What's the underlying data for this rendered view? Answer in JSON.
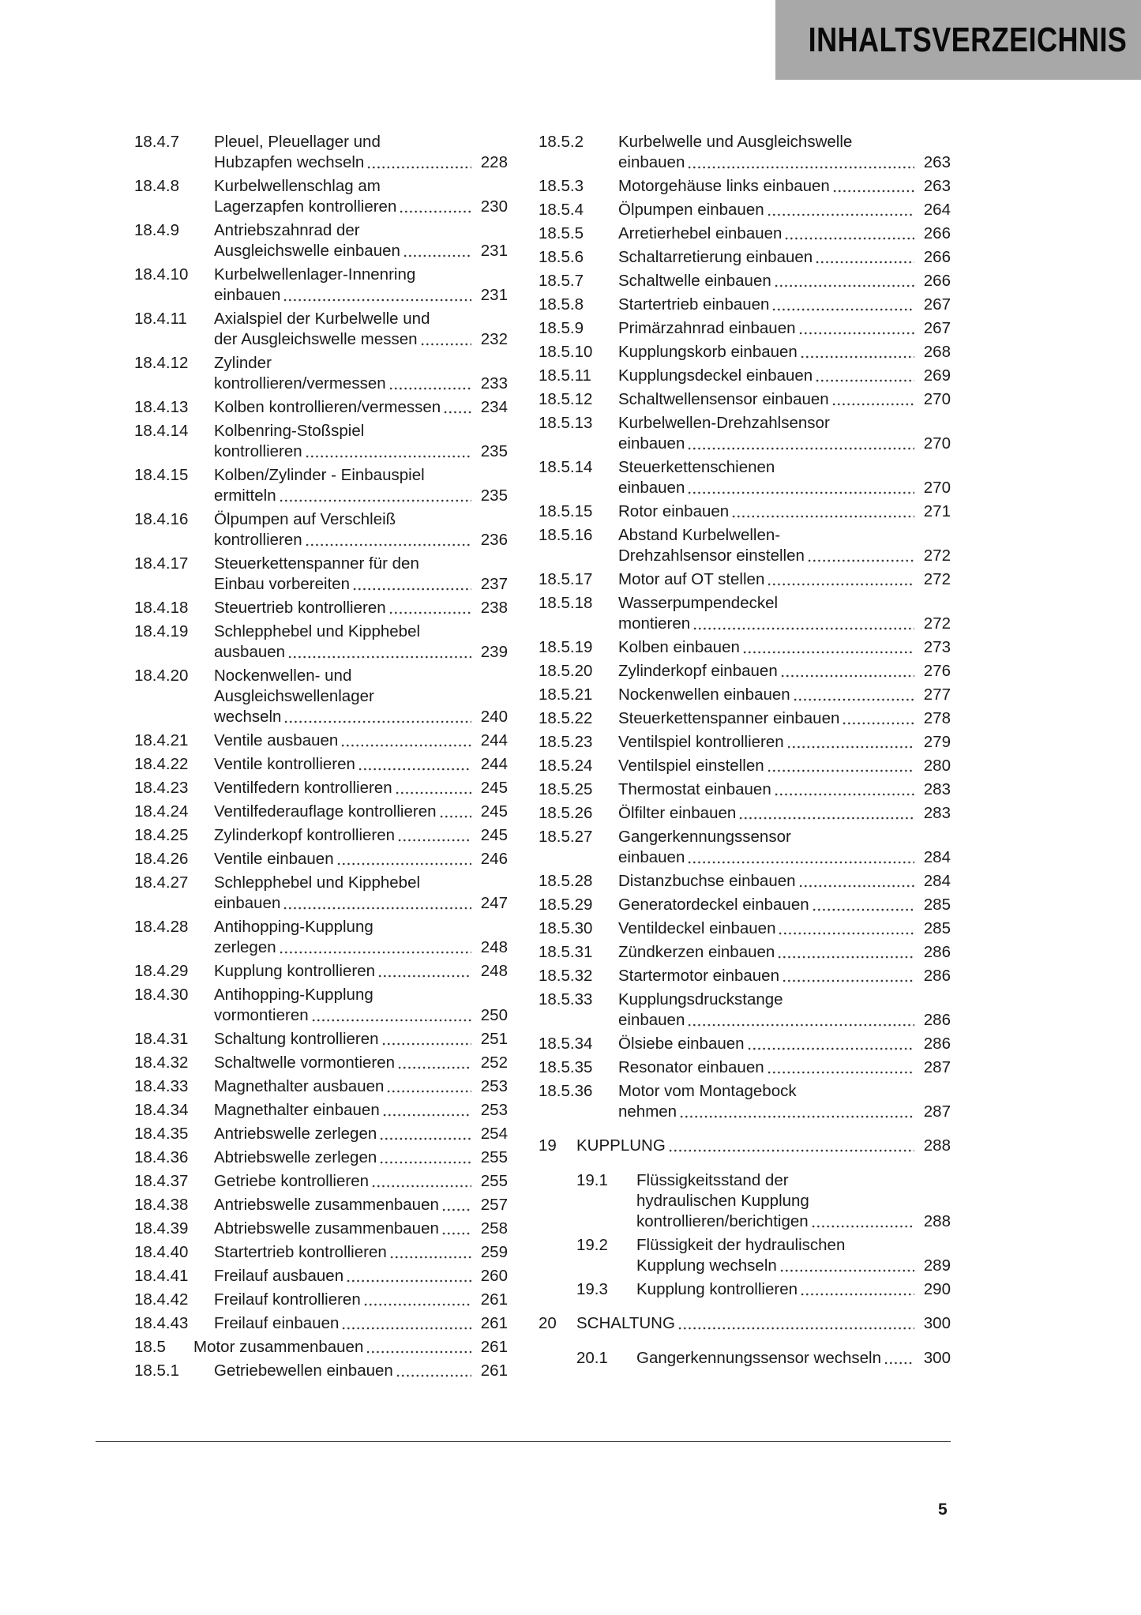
{
  "header": {
    "title": "INHALTSVERZEICHNIS",
    "background": "#a8a8a8"
  },
  "left_column": [
    {
      "num": "18.4.7",
      "lines": [
        "Pleuel, Pleuellager und",
        "Hubzapfen wechseln"
      ],
      "page": "228"
    },
    {
      "num": "18.4.8",
      "lines": [
        "Kurbelwellenschlag am",
        "Lagerzapfen kontrollieren"
      ],
      "page": "230"
    },
    {
      "num": "18.4.9",
      "lines": [
        "Antriebszahnrad der",
        "Ausgleichswelle einbauen"
      ],
      "page": "231"
    },
    {
      "num": "18.4.10",
      "lines": [
        "Kurbelwellenlager-Innenring",
        "einbauen"
      ],
      "page": "231"
    },
    {
      "num": "18.4.11",
      "lines": [
        "Axialspiel der Kurbelwelle und",
        "der Ausgleichswelle messen"
      ],
      "page": "232"
    },
    {
      "num": "18.4.12",
      "lines": [
        "Zylinder",
        "kontrollieren/vermessen"
      ],
      "page": "233"
    },
    {
      "num": "18.4.13",
      "lines": [
        "Kolben kontrollieren/vermessen"
      ],
      "page": "234"
    },
    {
      "num": "18.4.14",
      "lines": [
        "Kolbenring-Stoßspiel",
        "kontrollieren"
      ],
      "page": "235"
    },
    {
      "num": "18.4.15",
      "lines": [
        "Kolben/Zylinder - Einbauspiel",
        "ermitteln"
      ],
      "page": "235"
    },
    {
      "num": "18.4.16",
      "lines": [
        "Ölpumpen auf Verschleiß",
        "kontrollieren"
      ],
      "page": "236"
    },
    {
      "num": "18.4.17",
      "lines": [
        "Steuerkettenspanner für den",
        "Einbau vorbereiten"
      ],
      "page": "237"
    },
    {
      "num": "18.4.18",
      "lines": [
        "Steuertrieb kontrollieren"
      ],
      "page": "238"
    },
    {
      "num": "18.4.19",
      "lines": [
        "Schlepphebel und Kipphebel",
        "ausbauen"
      ],
      "page": "239"
    },
    {
      "num": "18.4.20",
      "lines": [
        "Nockenwellen- und",
        "Ausgleichswellenlager",
        "wechseln"
      ],
      "page": "240"
    },
    {
      "num": "18.4.21",
      "lines": [
        "Ventile ausbauen"
      ],
      "page": "244"
    },
    {
      "num": "18.4.22",
      "lines": [
        "Ventile kontrollieren"
      ],
      "page": "244"
    },
    {
      "num": "18.4.23",
      "lines": [
        "Ventilfedern kontrollieren"
      ],
      "page": "245"
    },
    {
      "num": "18.4.24",
      "lines": [
        "Ventilfederauflage kontrollieren"
      ],
      "page": "245"
    },
    {
      "num": "18.4.25",
      "lines": [
        "Zylinderkopf kontrollieren"
      ],
      "page": "245"
    },
    {
      "num": "18.4.26",
      "lines": [
        "Ventile einbauen"
      ],
      "page": "246"
    },
    {
      "num": "18.4.27",
      "lines": [
        "Schlepphebel und Kipphebel",
        "einbauen"
      ],
      "page": "247"
    },
    {
      "num": "18.4.28",
      "lines": [
        "Antihopping-Kupplung",
        "zerlegen"
      ],
      "page": "248"
    },
    {
      "num": "18.4.29",
      "lines": [
        "Kupplung kontrollieren"
      ],
      "page": "248"
    },
    {
      "num": "18.4.30",
      "lines": [
        "Antihopping-Kupplung",
        "vormontieren"
      ],
      "page": "250"
    },
    {
      "num": "18.4.31",
      "lines": [
        "Schaltung kontrollieren"
      ],
      "page": "251"
    },
    {
      "num": "18.4.32",
      "lines": [
        "Schaltwelle vormontieren"
      ],
      "page": "252"
    },
    {
      "num": "18.4.33",
      "lines": [
        "Magnethalter ausbauen"
      ],
      "page": "253"
    },
    {
      "num": "18.4.34",
      "lines": [
        "Magnethalter einbauen"
      ],
      "page": "253"
    },
    {
      "num": "18.4.35",
      "lines": [
        "Antriebswelle zerlegen"
      ],
      "page": "254"
    },
    {
      "num": "18.4.36",
      "lines": [
        "Abtriebswelle zerlegen"
      ],
      "page": "255"
    },
    {
      "num": "18.4.37",
      "lines": [
        "Getriebe kontrollieren"
      ],
      "page": "255"
    },
    {
      "num": "18.4.38",
      "lines": [
        "Antriebswelle zusammenbauen"
      ],
      "page": "257"
    },
    {
      "num": "18.4.39",
      "lines": [
        "Abtriebswelle zusammenbauen"
      ],
      "page": "258"
    },
    {
      "num": "18.4.40",
      "lines": [
        "Startertrieb kontrollieren"
      ],
      "page": "259"
    },
    {
      "num": "18.4.41",
      "lines": [
        "Freilauf ausbauen"
      ],
      "page": "260"
    },
    {
      "num": "18.4.42",
      "lines": [
        "Freilauf kontrollieren"
      ],
      "page": "261"
    },
    {
      "num": "18.4.43",
      "lines": [
        "Freilauf einbauen"
      ],
      "page": "261"
    },
    {
      "num": "18.5",
      "lines": [
        "Motor zusammenbauen"
      ],
      "page": "261",
      "level": 2
    },
    {
      "num": "18.5.1",
      "lines": [
        "Getriebewellen einbauen"
      ],
      "page": "261"
    }
  ],
  "right_column": [
    {
      "num": "18.5.2",
      "lines": [
        "Kurbelwelle und Ausgleichswelle",
        "einbauen"
      ],
      "page": "263"
    },
    {
      "num": "18.5.3",
      "lines": [
        "Motorgehäuse links einbauen"
      ],
      "page": "263"
    },
    {
      "num": "18.5.4",
      "lines": [
        "Ölpumpen einbauen"
      ],
      "page": "264"
    },
    {
      "num": "18.5.5",
      "lines": [
        "Arretierhebel einbauen"
      ],
      "page": "266"
    },
    {
      "num": "18.5.6",
      "lines": [
        "Schaltarretierung einbauen"
      ],
      "page": "266"
    },
    {
      "num": "18.5.7",
      "lines": [
        "Schaltwelle einbauen"
      ],
      "page": "266"
    },
    {
      "num": "18.5.8",
      "lines": [
        "Startertrieb einbauen"
      ],
      "page": "267"
    },
    {
      "num": "18.5.9",
      "lines": [
        "Primärzahnrad einbauen"
      ],
      "page": "267"
    },
    {
      "num": "18.5.10",
      "lines": [
        "Kupplungskorb einbauen"
      ],
      "page": "268"
    },
    {
      "num": "18.5.11",
      "lines": [
        "Kupplungsdeckel einbauen"
      ],
      "page": "269"
    },
    {
      "num": "18.5.12",
      "lines": [
        "Schaltwellensensor einbauen"
      ],
      "page": "270"
    },
    {
      "num": "18.5.13",
      "lines": [
        "Kurbelwellen-Drehzahlsensor",
        "einbauen"
      ],
      "page": "270"
    },
    {
      "num": "18.5.14",
      "lines": [
        "Steuerkettenschienen",
        "einbauen"
      ],
      "page": "270"
    },
    {
      "num": "18.5.15",
      "lines": [
        "Rotor einbauen"
      ],
      "page": "271"
    },
    {
      "num": "18.5.16",
      "lines": [
        "Abstand Kurbelwellen-",
        "Drehzahlsensor einstellen"
      ],
      "page": "272"
    },
    {
      "num": "18.5.17",
      "lines": [
        "Motor auf OT stellen"
      ],
      "page": "272"
    },
    {
      "num": "18.5.18",
      "lines": [
        "Wasserpumpendeckel",
        "montieren"
      ],
      "page": "272"
    },
    {
      "num": "18.5.19",
      "lines": [
        "Kolben einbauen"
      ],
      "page": "273"
    },
    {
      "num": "18.5.20",
      "lines": [
        "Zylinderkopf einbauen"
      ],
      "page": "276"
    },
    {
      "num": "18.5.21",
      "lines": [
        "Nockenwellen einbauen"
      ],
      "page": "277"
    },
    {
      "num": "18.5.22",
      "lines": [
        "Steuerkettenspanner einbauen"
      ],
      "page": "278"
    },
    {
      "num": "18.5.23",
      "lines": [
        "Ventilspiel kontrollieren"
      ],
      "page": "279"
    },
    {
      "num": "18.5.24",
      "lines": [
        "Ventilspiel einstellen"
      ],
      "page": "280"
    },
    {
      "num": "18.5.25",
      "lines": [
        "Thermostat einbauen"
      ],
      "page": "283"
    },
    {
      "num": "18.5.26",
      "lines": [
        "Ölfilter einbauen"
      ],
      "page": "283"
    },
    {
      "num": "18.5.27",
      "lines": [
        "Gangerkennungssensor",
        "einbauen"
      ],
      "page": "284"
    },
    {
      "num": "18.5.28",
      "lines": [
        "Distanzbuchse einbauen"
      ],
      "page": "284"
    },
    {
      "num": "18.5.29",
      "lines": [
        "Generatordeckel einbauen"
      ],
      "page": "285"
    },
    {
      "num": "18.5.30",
      "lines": [
        "Ventildeckel einbauen"
      ],
      "page": "285"
    },
    {
      "num": "18.5.31",
      "lines": [
        "Zündkerzen einbauen"
      ],
      "page": "286"
    },
    {
      "num": "18.5.32",
      "lines": [
        "Startermotor einbauen"
      ],
      "page": "286"
    },
    {
      "num": "18.5.33",
      "lines": [
        "Kupplungsdruckstange",
        "einbauen"
      ],
      "page": "286"
    },
    {
      "num": "18.5.34",
      "lines": [
        "Ölsiebe einbauen"
      ],
      "page": "286"
    },
    {
      "num": "18.5.35",
      "lines": [
        "Resonator einbauen"
      ],
      "page": "287"
    },
    {
      "num": "18.5.36",
      "lines": [
        "Motor vom Montagebock",
        "nehmen"
      ],
      "page": "287"
    },
    {
      "num": "19",
      "lines": [
        "KUPPLUNG"
      ],
      "page": "288",
      "level": 1
    },
    {
      "num": "19.1",
      "lines": [
        "Flüssigkeitsstand der",
        "hydraulischen Kupplung",
        "kontrollieren/berichtigen"
      ],
      "page": "288",
      "level": 2
    },
    {
      "num": "19.2",
      "lines": [
        "Flüssigkeit der hydraulischen",
        "Kupplung wechseln"
      ],
      "page": "289",
      "level": 2
    },
    {
      "num": "19.3",
      "lines": [
        "Kupplung kontrollieren"
      ],
      "page": "290",
      "level": 2
    },
    {
      "num": "20",
      "lines": [
        "SCHALTUNG"
      ],
      "page": "300",
      "level": 1
    },
    {
      "num": "20.1",
      "lines": [
        "Gangerkennungssensor wechseln"
      ],
      "page": "300",
      "level": 2
    }
  ],
  "footer": {
    "page_number": "5"
  }
}
